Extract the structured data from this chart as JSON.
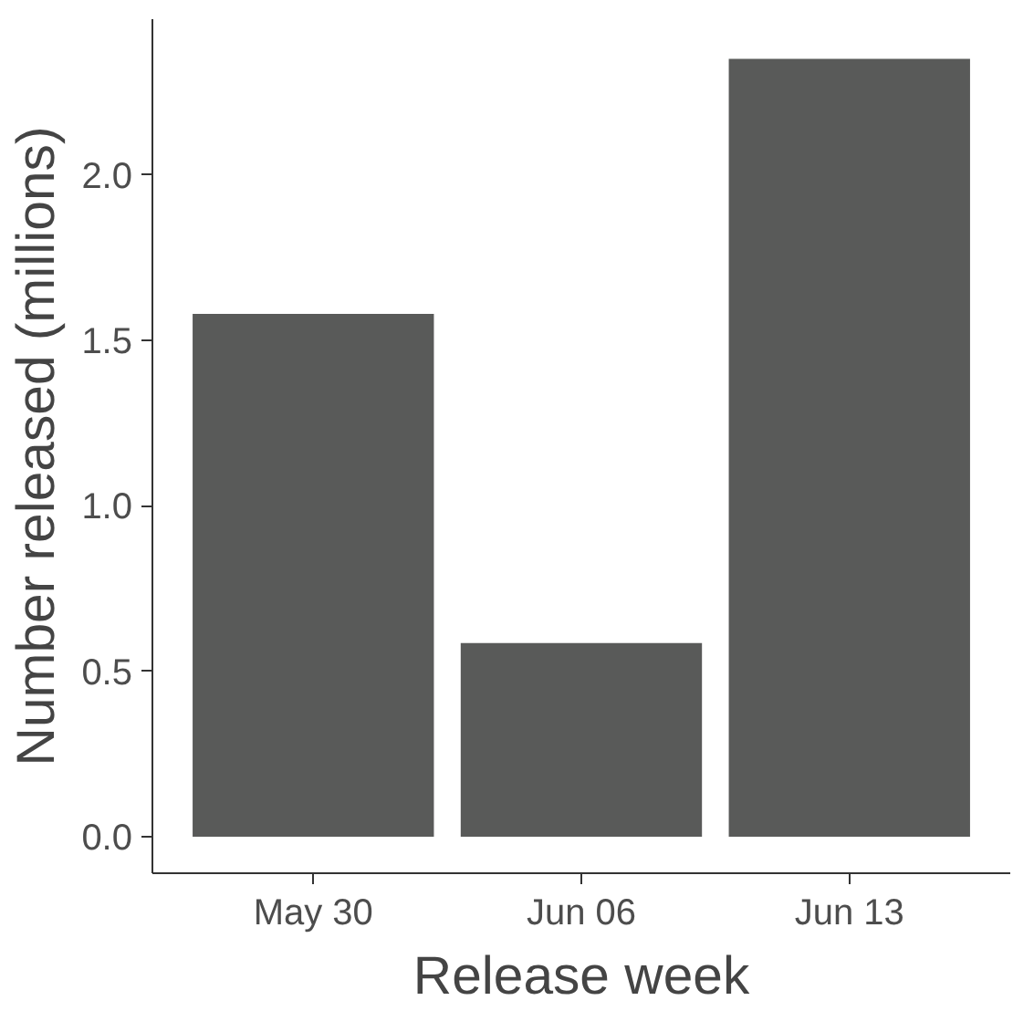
{
  "chart_data": {
    "type": "bar",
    "xlabel": "Release week",
    "ylabel": "Number released (millions)",
    "categories": [
      "May 30",
      "Jun 06",
      "Jun 13"
    ],
    "values": [
      1.58,
      0.585,
      2.35
    ],
    "color": "#595a59",
    "ylim": [
      -0.11,
      2.47
    ],
    "yticks": [
      {
        "value": 0,
        "label": "0.0"
      },
      {
        "value": 0.5,
        "label": "0.5"
      },
      {
        "value": 1,
        "label": "1.0"
      },
      {
        "value": 1.5,
        "label": "1.5"
      },
      {
        "value": 2,
        "label": "2.0"
      }
    ],
    "grid": false
  }
}
